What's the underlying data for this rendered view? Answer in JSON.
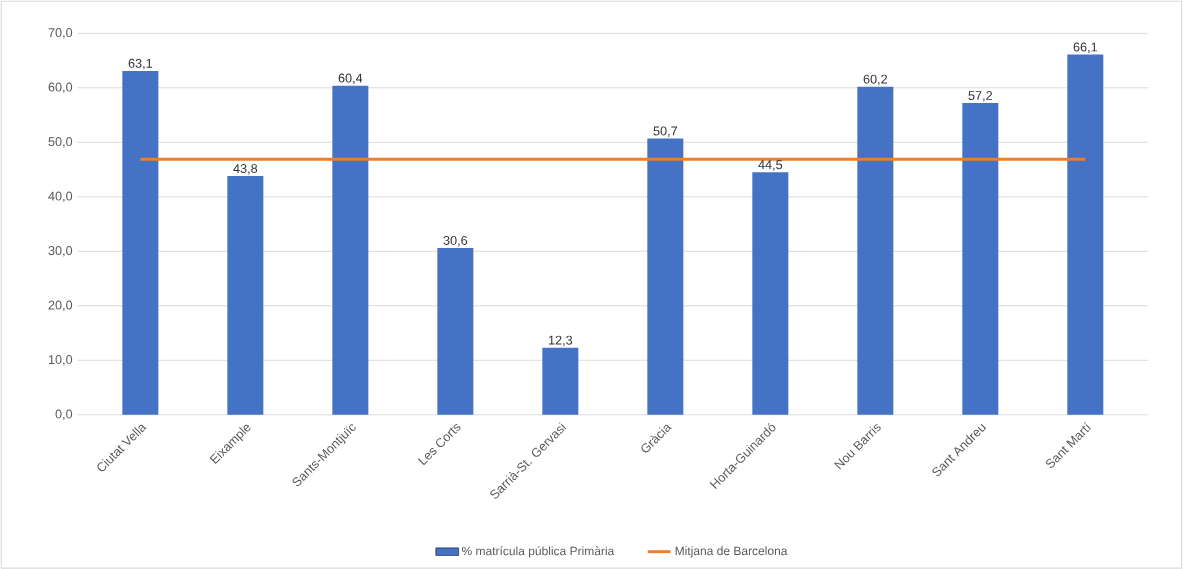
{
  "chart_data": {
    "type": "bar",
    "categories": [
      "Ciutat Vella",
      "Eixample",
      "Sants-Montjuïc",
      "Les Corts",
      "Sarrià-St. Gervasi",
      "Gràcia",
      "Horta-Guinardó",
      "Nou Barris",
      "Sant Andreu",
      "Sant Martí"
    ],
    "series": [
      {
        "name": "% matrícula pública Primària",
        "color": "#4472c4",
        "values": [
          63.1,
          43.8,
          60.4,
          30.6,
          12.3,
          50.7,
          44.5,
          60.2,
          57.2,
          66.1
        ],
        "value_labels": [
          "63,1",
          "43,8",
          "60,4",
          "30,6",
          "12,3",
          "50,7",
          "44,5",
          "60,2",
          "57,2",
          "66,1"
        ]
      },
      {
        "name": "Mitjana de Barcelona",
        "type": "line",
        "color": "#ed7d31",
        "values": [
          46.9,
          46.9,
          46.9,
          46.9,
          46.9,
          46.9,
          46.9,
          46.9,
          46.9,
          46.9
        ]
      }
    ],
    "ylim": [
      0,
      70
    ],
    "yticks": [
      {
        "value": 0,
        "label": "0,0"
      },
      {
        "value": 10,
        "label": "10,0"
      },
      {
        "value": 20,
        "label": "20,0"
      },
      {
        "value": 30,
        "label": "30,0"
      },
      {
        "value": 40,
        "label": "40,0"
      },
      {
        "value": 50,
        "label": "50,0"
      },
      {
        "value": 60,
        "label": "60,0"
      },
      {
        "value": 70,
        "label": "70,0"
      }
    ],
    "grid": "y",
    "legend": "bottom"
  }
}
